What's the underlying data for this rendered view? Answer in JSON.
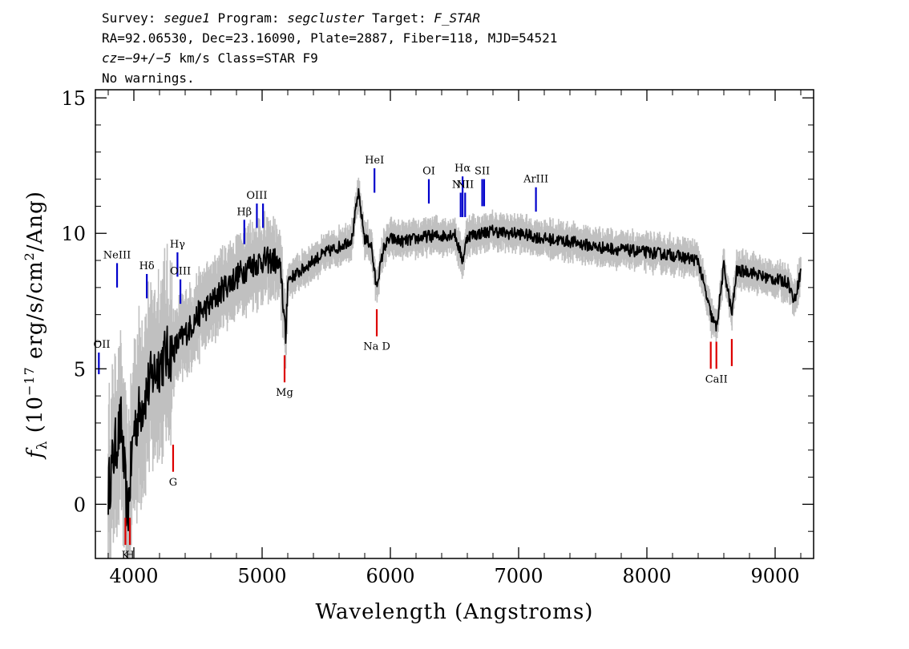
{
  "header": {
    "line1": {
      "survey_label": "Survey: ",
      "survey": "segue1",
      "program_label": " Program: ",
      "program": "segcluster",
      "target_label": " Target: ",
      "target": "F_STAR"
    },
    "line2": "RA=92.06530, Dec=23.16090, Plate=2887, Fiber=118, MJD=54521",
    "line3": {
      "cz_label": "cz=",
      "cz_value": "−9+/−5",
      "cz_rest": " km/s Class=STAR F9"
    },
    "line4": "No warnings."
  },
  "chart_data": {
    "type": "line",
    "xlabel": "Wavelength (Angstroms)",
    "ylabel": {
      "symbol": "f",
      "subscript": "λ",
      "pre": " (10",
      "exp": "−17",
      "mid": " erg/s/cm",
      "exp2": "2",
      "post": "/Ang)"
    },
    "xlim": [
      3700,
      9300
    ],
    "ylim": [
      -2,
      15.3
    ],
    "x_ticks": [
      4000,
      5000,
      6000,
      7000,
      8000,
      9000
    ],
    "x_tick_labels": [
      "4000",
      "5000",
      "6000",
      "7000",
      "8000",
      "9000"
    ],
    "y_ticks": [
      0,
      5,
      10,
      15
    ],
    "y_tick_labels": [
      "0",
      "5",
      "10",
      "15"
    ],
    "series": [
      {
        "role": "flux",
        "color": "#000000",
        "x": [
          3800,
          3850,
          3900,
          3950,
          4000,
          4050,
          4100,
          4150,
          4200,
          4250,
          4300,
          4350,
          4400,
          4450,
          4500,
          4600,
          4700,
          4800,
          4850,
          4900,
          5000,
          5100,
          5150,
          5183,
          5200,
          5300,
          5400,
          5500,
          5600,
          5700,
          5750,
          5800,
          5850,
          5890,
          5950,
          6000,
          6100,
          6200,
          6300,
          6400,
          6500,
          6563,
          6600,
          6700,
          6800,
          6900,
          7000,
          7200,
          7400,
          7600,
          7800,
          8000,
          8200,
          8400,
          8498,
          8542,
          8600,
          8662,
          8700,
          8800,
          8900,
          9000,
          9100,
          9150,
          9200
        ],
        "values": [
          0.5,
          2.0,
          3.0,
          -0.5,
          2.8,
          3.5,
          4.2,
          4.8,
          5.2,
          5.5,
          5.6,
          6.0,
          6.3,
          6.6,
          7.0,
          7.4,
          8.0,
          8.4,
          8.6,
          8.8,
          9.0,
          9.0,
          8.5,
          6.0,
          8.3,
          8.6,
          9.0,
          9.3,
          9.5,
          9.8,
          11.5,
          9.8,
          9.6,
          8.0,
          9.5,
          9.8,
          9.7,
          9.8,
          9.9,
          9.9,
          10.0,
          9.0,
          9.9,
          10.0,
          10.1,
          10.0,
          10.0,
          9.8,
          9.7,
          9.5,
          9.4,
          9.3,
          9.2,
          9.0,
          7.0,
          6.5,
          8.8,
          7.0,
          8.6,
          8.6,
          8.4,
          8.3,
          8.2,
          7.5,
          8.6
        ]
      }
    ],
    "uncertainty_color": "#c0c0c0",
    "emission_lines": [
      {
        "label": "OII",
        "x": 3727,
        "y0": 4.8,
        "y1": 5.6
      },
      {
        "label": "NeIII",
        "x": 3869,
        "y0": 8.0,
        "y1": 8.9
      },
      {
        "label": "Hδ",
        "x": 4101,
        "y0": 7.6,
        "y1": 8.5
      },
      {
        "label": "Hγ",
        "x": 4340,
        "y0": 8.4,
        "y1": 9.3
      },
      {
        "label": "OIII",
        "x": 4363,
        "y0": 7.4,
        "y1": 8.3
      },
      {
        "label": "Hβ",
        "x": 4861,
        "y0": 9.6,
        "y1": 10.5
      },
      {
        "label": "OIII",
        "x": 4959,
        "y0": 10.2,
        "y1": 11.1
      },
      {
        "label": "",
        "x": 5007,
        "y0": 10.2,
        "y1": 11.1
      },
      {
        "label": "HeI",
        "x": 5876,
        "y0": 11.5,
        "y1": 12.4
      },
      {
        "label": "OI",
        "x": 6300,
        "y0": 11.1,
        "y1": 12.0
      },
      {
        "label": "NII",
        "x": 6548,
        "y0": 10.6,
        "y1": 11.5
      },
      {
        "label": "Hα",
        "x": 6563,
        "y0": 10.6,
        "y1": 12.1
      },
      {
        "label": "NII",
        "x": 6583,
        "y0": 10.6,
        "y1": 11.5
      },
      {
        "label": "SII",
        "x": 6716,
        "y0": 11.0,
        "y1": 12.0
      },
      {
        "label": "",
        "x": 6731,
        "y0": 11.0,
        "y1": 12.0
      },
      {
        "label": "ArIII",
        "x": 7135,
        "y0": 10.8,
        "y1": 11.7
      }
    ],
    "absorption_lines": [
      {
        "label": "K",
        "x": 3934,
        "y0": -1.5,
        "y1": -0.5
      },
      {
        "label": "H",
        "x": 3969,
        "y0": -1.5,
        "y1": -0.5
      },
      {
        "label": "G",
        "x": 4306,
        "y0": 1.2,
        "y1": 2.2
      },
      {
        "label": "Mg",
        "x": 5175,
        "y0": 4.5,
        "y1": 5.5
      },
      {
        "label": "Na D",
        "x": 5894,
        "y0": 6.2,
        "y1": 7.2
      },
      {
        "label": "",
        "x": 8498,
        "y0": 5.0,
        "y1": 6.0
      },
      {
        "label": "CaII",
        "x": 8542,
        "y0": 5.0,
        "y1": 6.0
      },
      {
        "label": "",
        "x": 8662,
        "y0": 5.1,
        "y1": 6.1
      }
    ],
    "emission_color": "#0000cc",
    "absorption_color": "#dd0000"
  }
}
